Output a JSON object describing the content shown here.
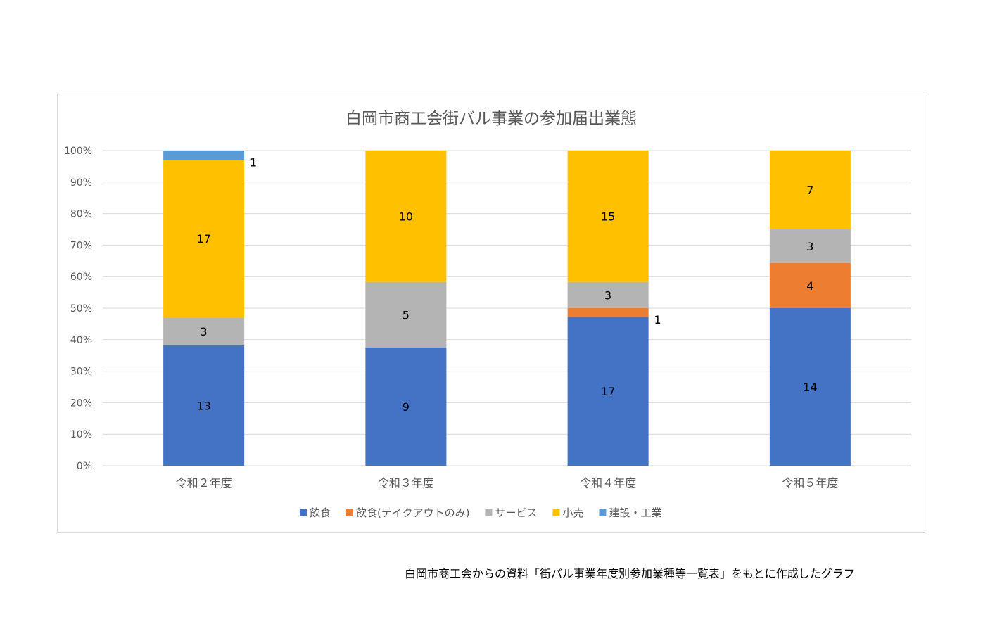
{
  "chart_data": {
    "type": "bar",
    "stacked": "percent",
    "title": "白岡市商工会街バル事業の参加届出業態",
    "categories": [
      "令和２年度",
      "令和３年度",
      "令和４年度",
      "令和５年度"
    ],
    "series": [
      {
        "name": "飲食",
        "color": "#4472C4",
        "values": [
          13,
          9,
          17,
          14
        ]
      },
      {
        "name": "飲食(テイクアウトのみ)",
        "color": "#ED7D31",
        "values": [
          0,
          0,
          1,
          4
        ]
      },
      {
        "name": "サービス",
        "color": "#B4B4B4",
        "values": [
          3,
          5,
          3,
          3
        ]
      },
      {
        "name": "小売",
        "color": "#FFC000",
        "values": [
          17,
          10,
          15,
          7
        ]
      },
      {
        "name": "建設・工業",
        "color": "#5B9BD5",
        "values": [
          1,
          0,
          0,
          0
        ]
      }
    ],
    "yticks": [
      "0%",
      "10%",
      "20%",
      "30%",
      "40%",
      "50%",
      "60%",
      "70%",
      "80%",
      "90%",
      "100%"
    ],
    "ylim": [
      0,
      100
    ],
    "grid": true,
    "legend": "bottom"
  },
  "source_note": "白岡市商工会からの資料「街バル事業年度別参加業種等一覧表」をもとに作成したグラフ"
}
